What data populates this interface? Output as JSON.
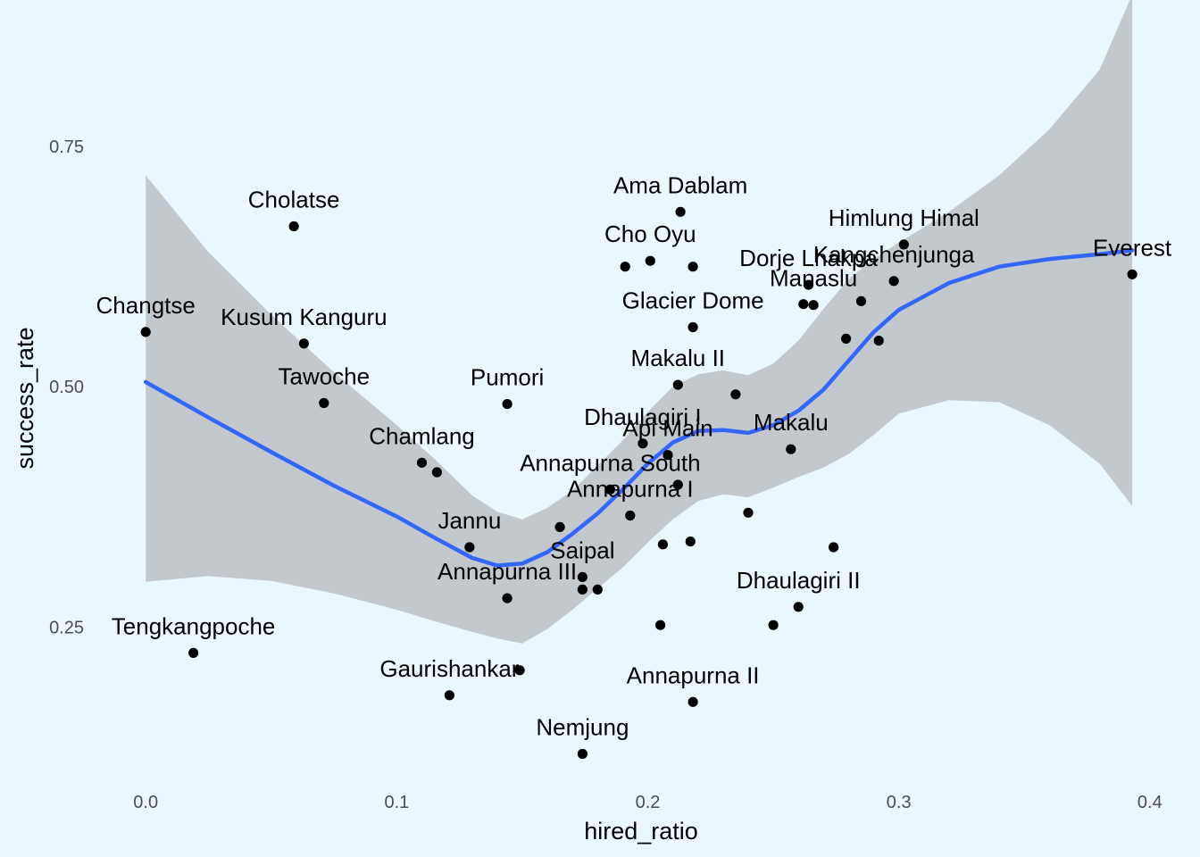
{
  "chart_data": {
    "type": "scatter",
    "title": "",
    "xlabel": "hired_ratio",
    "ylabel": "success_rate",
    "xlim": [
      -0.02,
      0.415
    ],
    "ylim": [
      0.085,
      0.895
    ],
    "x_ticks": [
      0.0,
      0.1,
      0.2,
      0.3,
      0.4
    ],
    "x_tick_labels": [
      "0.0",
      "0.1",
      "0.2",
      "0.3",
      "0.4"
    ],
    "y_ticks": [
      0.25,
      0.5,
      0.75
    ],
    "y_tick_labels": [
      "0.25",
      "0.50",
      "0.75"
    ],
    "grid": false,
    "colors": {
      "background": "#EBF7FF",
      "points": "#000000",
      "smooth_line": "#3366FF",
      "confidence_band": "#999999"
    },
    "points": [
      {
        "x": 0.0,
        "y": 0.557,
        "label": "Changtse"
      },
      {
        "x": 0.019,
        "y": 0.223,
        "label": "Tengkangpoche"
      },
      {
        "x": 0.059,
        "y": 0.667,
        "label": "Cholatse"
      },
      {
        "x": 0.063,
        "y": 0.545,
        "label": "Kusum Kanguru"
      },
      {
        "x": 0.071,
        "y": 0.483,
        "label": "Tawoche"
      },
      {
        "x": 0.11,
        "y": 0.421,
        "label": "Chamlang"
      },
      {
        "x": 0.116,
        "y": 0.411,
        "label": ""
      },
      {
        "x": 0.121,
        "y": 0.179,
        "label": "Gaurishankar"
      },
      {
        "x": 0.129,
        "y": 0.333,
        "label": "Jannu"
      },
      {
        "x": 0.144,
        "y": 0.28,
        "label": "Annapurna III"
      },
      {
        "x": 0.144,
        "y": 0.482,
        "label": "Pumori"
      },
      {
        "x": 0.149,
        "y": 0.205,
        "label": ""
      },
      {
        "x": 0.165,
        "y": 0.354,
        "label": ""
      },
      {
        "x": 0.174,
        "y": 0.289,
        "label": ""
      },
      {
        "x": 0.174,
        "y": 0.302,
        "label": "Saipal"
      },
      {
        "x": 0.174,
        "y": 0.118,
        "label": "Nemjung"
      },
      {
        "x": 0.18,
        "y": 0.289,
        "label": ""
      },
      {
        "x": 0.185,
        "y": 0.393,
        "label": "Annapurna South"
      },
      {
        "x": 0.191,
        "y": 0.625,
        "label": ""
      },
      {
        "x": 0.193,
        "y": 0.366,
        "label": "Annapurna I"
      },
      {
        "x": 0.198,
        "y": 0.441,
        "label": "Dhaulagiri I"
      },
      {
        "x": 0.201,
        "y": 0.631,
        "label": "Cho Oyu"
      },
      {
        "x": 0.205,
        "y": 0.252,
        "label": ""
      },
      {
        "x": 0.206,
        "y": 0.336,
        "label": ""
      },
      {
        "x": 0.208,
        "y": 0.429,
        "label": "Api Main"
      },
      {
        "x": 0.212,
        "y": 0.398,
        "label": ""
      },
      {
        "x": 0.212,
        "y": 0.502,
        "label": "Makalu II"
      },
      {
        "x": 0.213,
        "y": 0.682,
        "label": "Ama Dablam"
      },
      {
        "x": 0.217,
        "y": 0.339,
        "label": ""
      },
      {
        "x": 0.218,
        "y": 0.625,
        "label": ""
      },
      {
        "x": 0.218,
        "y": 0.562,
        "label": "Glacier Dome"
      },
      {
        "x": 0.218,
        "y": 0.172,
        "label": "Annapurna II"
      },
      {
        "x": 0.235,
        "y": 0.492,
        "label": ""
      },
      {
        "x": 0.24,
        "y": 0.369,
        "label": ""
      },
      {
        "x": 0.25,
        "y": 0.252,
        "label": ""
      },
      {
        "x": 0.257,
        "y": 0.435,
        "label": "Makalu"
      },
      {
        "x": 0.26,
        "y": 0.271,
        "label": "Dhaulagiri II"
      },
      {
        "x": 0.262,
        "y": 0.586,
        "label": ""
      },
      {
        "x": 0.264,
        "y": 0.606,
        "label": "Dorje Lhakpa"
      },
      {
        "x": 0.266,
        "y": 0.585,
        "label": "Manaslu"
      },
      {
        "x": 0.274,
        "y": 0.333,
        "label": ""
      },
      {
        "x": 0.279,
        "y": 0.55,
        "label": ""
      },
      {
        "x": 0.285,
        "y": 0.589,
        "label": ""
      },
      {
        "x": 0.292,
        "y": 0.548,
        "label": ""
      },
      {
        "x": 0.298,
        "y": 0.61,
        "label": "Kangchenjunga"
      },
      {
        "x": 0.302,
        "y": 0.648,
        "label": "Himlung Himal"
      },
      {
        "x": 0.393,
        "y": 0.617,
        "label": "Everest"
      }
    ],
    "smooth": {
      "x": [
        0.0,
        0.025,
        0.05,
        0.075,
        0.1,
        0.115,
        0.13,
        0.14,
        0.15,
        0.16,
        0.17,
        0.18,
        0.19,
        0.2,
        0.21,
        0.22,
        0.23,
        0.24,
        0.25,
        0.26,
        0.27,
        0.28,
        0.29,
        0.3,
        0.32,
        0.34,
        0.36,
        0.38,
        0.393
      ],
      "y": [
        0.505,
        0.468,
        0.432,
        0.397,
        0.365,
        0.343,
        0.322,
        0.314,
        0.316,
        0.328,
        0.347,
        0.368,
        0.393,
        0.42,
        0.442,
        0.454,
        0.455,
        0.452,
        0.46,
        0.475,
        0.497,
        0.527,
        0.557,
        0.58,
        0.608,
        0.625,
        0.633,
        0.638,
        0.642
      ],
      "upper": [
        0.72,
        0.64,
        0.575,
        0.515,
        0.46,
        0.425,
        0.387,
        0.37,
        0.362,
        0.374,
        0.392,
        0.418,
        0.444,
        0.474,
        0.5,
        0.513,
        0.517,
        0.512,
        0.524,
        0.548,
        0.581,
        0.612,
        0.633,
        0.65,
        0.682,
        0.72,
        0.768,
        0.83,
        0.908
      ],
      "lower": [
        0.297,
        0.303,
        0.298,
        0.285,
        0.268,
        0.256,
        0.245,
        0.238,
        0.233,
        0.248,
        0.268,
        0.29,
        0.312,
        0.338,
        0.362,
        0.381,
        0.388,
        0.385,
        0.395,
        0.406,
        0.416,
        0.43,
        0.45,
        0.472,
        0.486,
        0.484,
        0.46,
        0.42,
        0.376
      ]
    }
  }
}
